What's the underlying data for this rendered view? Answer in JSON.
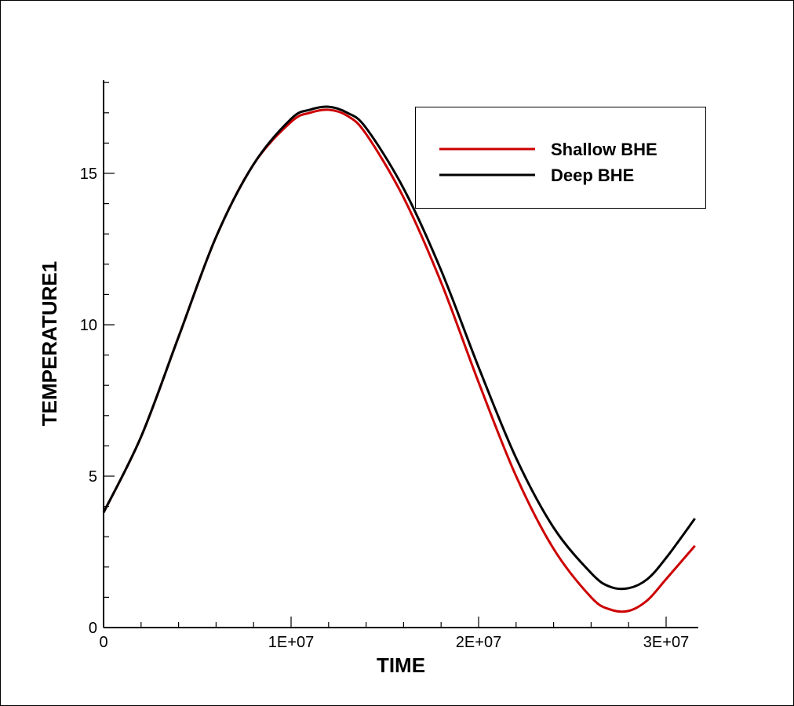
{
  "chart_data": {
    "type": "line",
    "title": "",
    "xlabel": "TIME",
    "ylabel": "TEMPERATURE1",
    "xlim": [
      0,
      31536000
    ],
    "ylim": [
      0,
      18
    ],
    "x_ticks": [
      {
        "value": 0,
        "label": "0"
      },
      {
        "value": 10000000,
        "label": "1E+07"
      },
      {
        "value": 20000000,
        "label": "2E+07"
      },
      {
        "value": 30000000,
        "label": "3E+07"
      }
    ],
    "y_ticks": [
      {
        "value": 0,
        "label": "0"
      },
      {
        "value": 5,
        "label": "5"
      },
      {
        "value": 10,
        "label": "10"
      },
      {
        "value": 15,
        "label": "15"
      }
    ],
    "grid": false,
    "legend": {
      "position": "top-right"
    },
    "series": [
      {
        "name": "Shallow BHE",
        "color": "#cc0000",
        "x": [
          0,
          2000000,
          4000000,
          6000000,
          8000000,
          10000000,
          11000000,
          12000000,
          13000000,
          14000000,
          16000000,
          18000000,
          20000000,
          22000000,
          24000000,
          26000000,
          27000000,
          28000000,
          29000000,
          30000000,
          31536000
        ],
        "y": [
          3.8,
          6.3,
          9.6,
          12.9,
          15.3,
          16.7,
          17.0,
          17.1,
          16.9,
          16.3,
          14.2,
          11.4,
          8.1,
          5.0,
          2.6,
          1.0,
          0.6,
          0.55,
          0.9,
          1.6,
          2.7
        ]
      },
      {
        "name": "Deep BHE",
        "color": "#000000",
        "x": [
          0,
          2000000,
          4000000,
          6000000,
          8000000,
          10000000,
          11000000,
          12000000,
          13000000,
          14000000,
          16000000,
          18000000,
          20000000,
          22000000,
          24000000,
          26000000,
          27000000,
          28000000,
          29000000,
          30000000,
          31536000
        ],
        "y": [
          3.8,
          6.3,
          9.6,
          12.9,
          15.3,
          16.8,
          17.1,
          17.2,
          17.0,
          16.5,
          14.5,
          11.8,
          8.6,
          5.6,
          3.3,
          1.8,
          1.35,
          1.3,
          1.6,
          2.3,
          3.6
        ]
      }
    ]
  }
}
